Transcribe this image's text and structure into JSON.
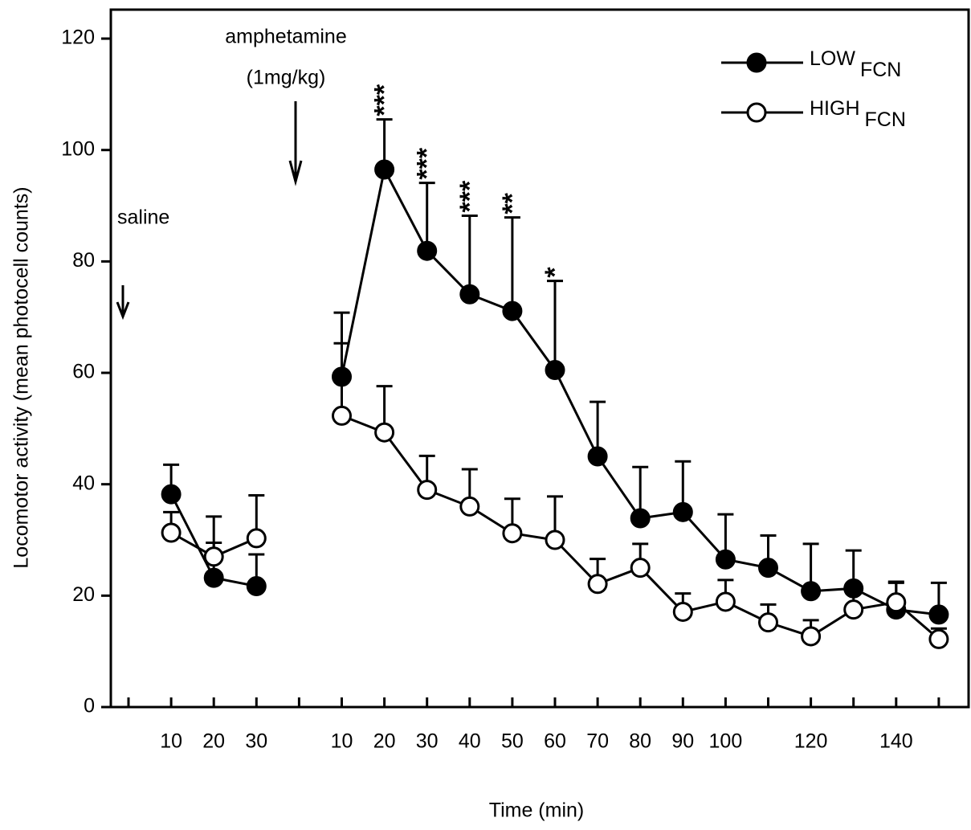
{
  "chart_data": {
    "type": "line",
    "x_label": "Time (min)",
    "y_label": "Locomotor activity (mean photocell counts)",
    "categories": [
      null,
      "10",
      "20",
      "30",
      null,
      "10",
      "20",
      "30",
      "40",
      "50",
      "60",
      "70",
      "80",
      "90",
      "100",
      null,
      "120",
      null,
      "140",
      null
    ],
    "series": [
      {
        "name": "LOW",
        "name_subscript": "FCN",
        "color": "#000000",
        "marker_fill": "#000000",
        "values": [
          null,
          38.2,
          23.2,
          21.7,
          null,
          59.3,
          96.5,
          81.9,
          74.1,
          71.1,
          60.5,
          45,
          33.9,
          35,
          26.5,
          25,
          20.8,
          21.3,
          17.5,
          16.6
        ],
        "errors": [
          null,
          5.3,
          6.3,
          5.7,
          null,
          11.5,
          9,
          12.2,
          14.1,
          16.8,
          16,
          9.8,
          9.2,
          9.1,
          8.1,
          5.8,
          8.5,
          6.8,
          5,
          5.7
        ]
      },
      {
        "name": "HIGH",
        "name_subscript": "FCN",
        "color": "#000000",
        "marker_fill": "#ffffff",
        "values": [
          null,
          31.3,
          27,
          30.3,
          null,
          52.3,
          49.3,
          39,
          36,
          31.2,
          30,
          22.1,
          25,
          17.1,
          18.9,
          15.2,
          12.7,
          17.5,
          18.8,
          12.2
        ],
        "errors": [
          null,
          3.7,
          7.2,
          7.7,
          null,
          13,
          8.3,
          6.1,
          6.7,
          6.2,
          7.8,
          4.5,
          4.3,
          3.3,
          3.9,
          3.2,
          2.9,
          3.5,
          3.5,
          1.9
        ]
      }
    ],
    "significance": [
      null,
      null,
      null,
      null,
      null,
      null,
      "***",
      "***",
      "***",
      "**",
      "*",
      null,
      null,
      null,
      null,
      null,
      null,
      null,
      null,
      null
    ],
    "annotations": [
      "saline",
      "amphetamine",
      "(1mg/kg)"
    ],
    "ylim": [
      0,
      125.2
    ],
    "yticks": [
      0,
      20,
      40,
      60,
      80,
      100,
      120
    ],
    "legend": "upper right"
  }
}
